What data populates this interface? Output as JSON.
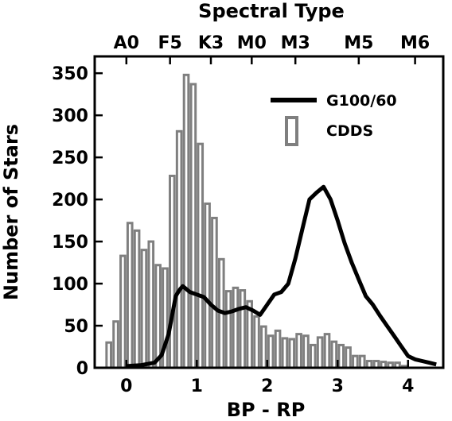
{
  "chart_data": {
    "type": "bar",
    "xlabel": "BP - RP",
    "ylabel": "Number of Stars",
    "top_axis_label": "Spectral Type",
    "xlim": [
      -0.45,
      4.5
    ],
    "ylim": [
      0,
      370
    ],
    "x_ticks": [
      "0",
      "1",
      "2",
      "3",
      "4"
    ],
    "x_tick_values": [
      0,
      1,
      2,
      3,
      4
    ],
    "y_ticks": [
      "0",
      "50",
      "100",
      "150",
      "200",
      "250",
      "300",
      "350"
    ],
    "y_tick_values": [
      0,
      50,
      100,
      150,
      200,
      250,
      300,
      350
    ],
    "spectral_types": [
      {
        "label": "A0",
        "x": 0.0
      },
      {
        "label": "F5",
        "x": 0.62
      },
      {
        "label": "K3",
        "x": 1.2
      },
      {
        "label": "M0",
        "x": 1.78
      },
      {
        "label": "M3",
        "x": 2.4
      },
      {
        "label": "M5",
        "x": 3.3
      },
      {
        "label": "M6",
        "x": 4.1
      }
    ],
    "series": [
      {
        "name": "CDDS",
        "kind": "histogram",
        "color": "#7f7f7f",
        "bin_width": 0.1,
        "bin_left_edges": [
          -0.3,
          -0.2,
          -0.1,
          0.0,
          0.1,
          0.2,
          0.3,
          0.4,
          0.5,
          0.6,
          0.7,
          0.8,
          0.9,
          1.0,
          1.1,
          1.2,
          1.3,
          1.4,
          1.5,
          1.6,
          1.7,
          1.8,
          1.9,
          2.0,
          2.1,
          2.2,
          2.3,
          2.4,
          2.5,
          2.6,
          2.7,
          2.8,
          2.9,
          3.0,
          3.1,
          3.2,
          3.3,
          3.4,
          3.5,
          3.6,
          3.7,
          3.8,
          3.9
        ],
        "values": [
          30,
          55,
          133,
          172,
          163,
          140,
          150,
          122,
          118,
          228,
          281,
          348,
          337,
          266,
          195,
          178,
          129,
          91,
          95,
          92,
          79,
          61,
          49,
          38,
          44,
          35,
          34,
          40,
          38,
          27,
          36,
          40,
          31,
          27,
          24,
          14,
          14,
          8,
          8,
          7,
          6,
          6,
          2
        ]
      },
      {
        "name": "G100/60",
        "kind": "line",
        "color": "#000000",
        "x": [
          0.0,
          0.2,
          0.4,
          0.5,
          0.6,
          0.7,
          0.75,
          0.8,
          0.9,
          1.0,
          1.1,
          1.2,
          1.3,
          1.4,
          1.5,
          1.6,
          1.7,
          1.8,
          1.9,
          2.0,
          2.1,
          2.2,
          2.3,
          2.4,
          2.5,
          2.6,
          2.7,
          2.8,
          2.9,
          3.0,
          3.1,
          3.2,
          3.3,
          3.4,
          3.5,
          3.6,
          3.7,
          3.8,
          3.9,
          4.0,
          4.1,
          4.2,
          4.3,
          4.4
        ],
        "y": [
          2,
          3,
          6,
          15,
          40,
          85,
          92,
          97,
          90,
          87,
          84,
          75,
          68,
          65,
          67,
          70,
          72,
          68,
          63,
          75,
          87,
          90,
          100,
          130,
          165,
          200,
          208,
          215,
          200,
          175,
          148,
          125,
          105,
          85,
          75,
          62,
          50,
          38,
          26,
          14,
          10,
          8,
          6,
          4
        ]
      }
    ],
    "legend": {
      "position": "top-right",
      "entries": [
        "G100/60",
        "CDDS"
      ]
    }
  }
}
